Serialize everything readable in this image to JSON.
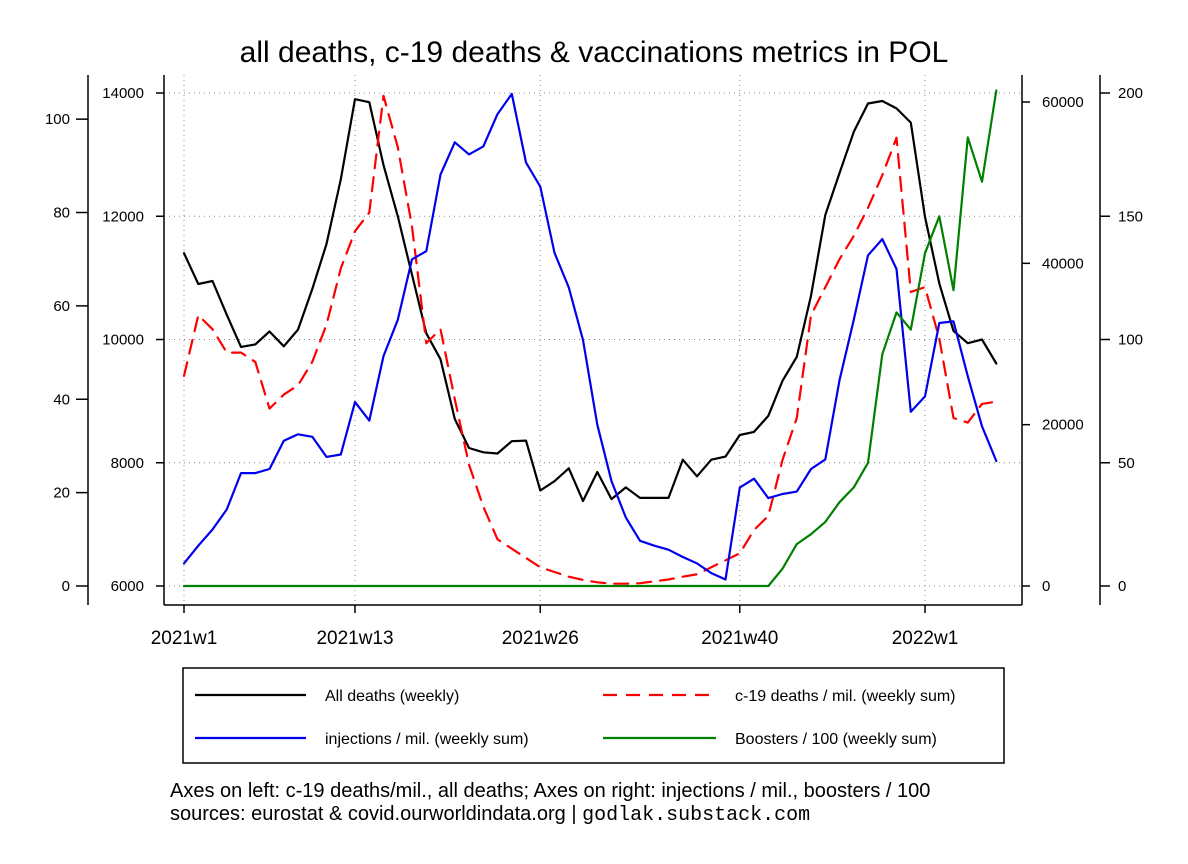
{
  "chart_data": {
    "type": "line",
    "title": "all deaths, c-19 deaths & vaccinations metrics in POL",
    "x_tick_labels": [
      "2021w1",
      "2021w13",
      "2021w26",
      "2021w40",
      "2022w1"
    ],
    "x_tick_weeks": [
      1,
      13,
      26,
      40,
      53
    ],
    "x_range": [
      1,
      58
    ],
    "axes": {
      "c19_deaths": {
        "side": "left-outer",
        "ylim": [
          0,
          105
        ],
        "ticks": [
          "0",
          "20",
          "40",
          "60",
          "80",
          "100"
        ],
        "tick_values": [
          0,
          20,
          40,
          60,
          80,
          100
        ]
      },
      "all_deaths": {
        "side": "left-inner",
        "ylim": [
          6000,
          14000
        ],
        "ticks": [
          "6000",
          "8000",
          "10000",
          "12000",
          "14000"
        ],
        "tick_values": [
          6000,
          8000,
          10000,
          12000,
          14000
        ]
      },
      "injections": {
        "side": "right-inner",
        "ylim": [
          0,
          62000
        ],
        "ticks": [
          "0",
          "20000",
          "40000",
          "60000"
        ],
        "tick_values": [
          0,
          20000,
          40000,
          60000
        ]
      },
      "boosters": {
        "side": "right-outer",
        "ylim": [
          0,
          200
        ],
        "ticks": [
          "0",
          "50",
          "100",
          "150",
          "200"
        ],
        "tick_values": [
          0,
          50,
          100,
          150,
          200
        ]
      }
    },
    "series": [
      {
        "name": "All deaths (weekly)",
        "axis": "all_deaths",
        "color": "#000000",
        "dash": "",
        "values": [
          11400,
          10900,
          10950,
          10400,
          9880,
          9920,
          10130,
          9890,
          10160,
          10820,
          11550,
          12600,
          13900,
          13850,
          12830,
          12000,
          11050,
          10100,
          9680,
          8710,
          8240,
          8170,
          8150,
          8350,
          8360,
          7550,
          7700,
          7910,
          7380,
          7850,
          7410,
          7600,
          7430,
          7430,
          7430,
          8050,
          7780,
          8050,
          8100,
          8450,
          8500,
          8760,
          9330,
          9720,
          10710,
          12020,
          12700,
          13370,
          13830,
          13870,
          13750,
          13520,
          11990,
          10910,
          10140,
          9940,
          10000,
          9610
        ]
      },
      {
        "name": "c-19 deaths / mil. (weekly sum)",
        "axis": "c19_deaths",
        "color": "#ff0000",
        "dash": "14,9",
        "values": [
          45,
          58,
          55,
          50,
          50,
          48,
          38,
          41,
          43,
          48,
          56,
          68,
          76,
          80,
          105,
          94,
          77,
          52,
          55,
          40,
          26,
          17,
          10,
          8,
          6,
          4,
          3,
          2,
          1.3,
          0.8,
          0.5,
          0.5,
          0.6,
          1,
          1.4,
          2,
          2.5,
          4,
          5.5,
          7,
          12,
          15,
          27,
          36,
          58,
          64,
          70,
          75,
          81,
          88,
          96,
          63,
          64,
          53,
          36,
          35,
          39,
          39.5
        ]
      },
      {
        "name": "injections / mil. (weekly sum)",
        "axis": "injections",
        "color": "#0000ee",
        "dash": "",
        "values": [
          2800,
          5000,
          7000,
          9500,
          14000,
          14000,
          14500,
          18000,
          18800,
          18500,
          16000,
          16300,
          22800,
          20500,
          28500,
          33000,
          40500,
          41500,
          51000,
          55000,
          53500,
          54500,
          58500,
          61000,
          52500,
          49500,
          41300,
          37000,
          30500,
          20000,
          13000,
          8500,
          5600,
          5000,
          4500,
          3600,
          2800,
          1600,
          800,
          12200,
          13300,
          10900,
          11400,
          11700,
          14500,
          15700,
          25500,
          33000,
          41000,
          43000,
          39300,
          21600,
          23500,
          32600,
          32800,
          26000,
          19800,
          15500
        ]
      },
      {
        "name": "Boosters / 100 (weekly sum)",
        "axis": "boosters",
        "color": "#008000",
        "dash": "",
        "values": [
          0,
          0,
          0,
          0,
          0,
          0,
          0,
          0,
          0,
          0,
          0,
          0,
          0,
          0,
          0,
          0,
          0,
          0,
          0,
          0,
          0,
          0,
          0,
          0,
          0,
          0,
          0,
          0,
          0,
          0,
          0,
          0,
          0,
          0,
          0,
          0,
          0,
          0,
          0,
          0,
          0,
          0,
          7,
          17,
          21,
          26,
          34,
          40,
          50,
          94,
          111,
          104,
          135,
          150,
          120,
          182,
          164,
          201
        ]
      }
    ],
    "legend": {
      "placement": "bottom",
      "columns": 2
    }
  },
  "footer": {
    "line1": "Axes on left: c-19 deaths/mil., all deaths; Axes on right: injections / mil., boosters / 100",
    "line2": "sources: eurostat & covid.ourworldindata.org |",
    "credit": "godlak.substack.com"
  }
}
